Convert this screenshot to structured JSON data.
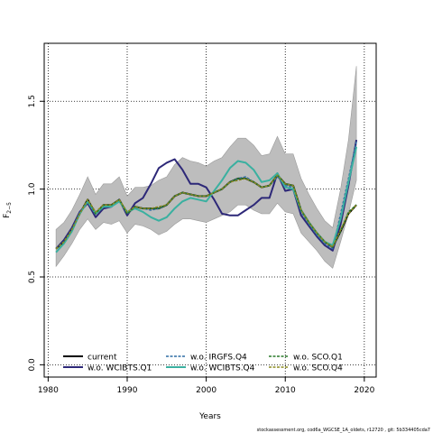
{
  "chart_data": {
    "type": "line",
    "xlabel": "Years",
    "ylabel_main": "F",
    "ylabel_sub": "2−5",
    "xlim": [
      1979.5,
      2021.5
    ],
    "ylim": [
      -0.07,
      1.83
    ],
    "xticks": [
      1980,
      1990,
      2000,
      2010,
      2020
    ],
    "yticks": [
      0.0,
      0.5,
      1.0,
      1.5
    ],
    "ytick_labels": [
      "0.0",
      "0.5",
      "1.0",
      "1.5"
    ],
    "grid": "dotted",
    "legend_position": "bottom-left",
    "footer": "stockassessment.org, cod6a_WGCSE_1A_oldets, r12720 , git: 5b334405cda7",
    "x": [
      1981,
      1982,
      1983,
      1984,
      1985,
      1986,
      1987,
      1988,
      1989,
      1990,
      1991,
      1992,
      1993,
      1994,
      1995,
      1996,
      1997,
      1998,
      1999,
      2000,
      2001,
      2002,
      2003,
      2004,
      2005,
      2006,
      2007,
      2008,
      2009,
      2010,
      2011,
      2012,
      2013,
      2014,
      2015,
      2016,
      2017,
      2018,
      2019
    ],
    "band": {
      "upper": [
        0.77,
        0.81,
        0.88,
        0.97,
        1.07,
        0.97,
        1.03,
        1.03,
        1.07,
        0.96,
        1.01,
        1.01,
        1.02,
        1.05,
        1.07,
        1.14,
        1.18,
        1.16,
        1.15,
        1.13,
        1.16,
        1.18,
        1.24,
        1.29,
        1.29,
        1.25,
        1.19,
        1.2,
        1.3,
        1.2,
        1.2,
        1.06,
        0.97,
        0.89,
        0.82,
        0.78,
        1.0,
        1.28,
        1.7
      ],
      "lower": [
        0.56,
        0.62,
        0.69,
        0.77,
        0.83,
        0.77,
        0.81,
        0.8,
        0.82,
        0.75,
        0.8,
        0.79,
        0.77,
        0.74,
        0.76,
        0.8,
        0.83,
        0.83,
        0.82,
        0.81,
        0.83,
        0.85,
        0.87,
        0.91,
        0.91,
        0.88,
        0.86,
        0.86,
        0.92,
        0.87,
        0.86,
        0.75,
        0.7,
        0.65,
        0.59,
        0.55,
        0.7,
        0.86,
        1.05
      ]
    },
    "series": [
      {
        "name": "current",
        "color": "#000000",
        "dash": "solid",
        "width": 2.0,
        "values": [
          0.66,
          0.7,
          0.77,
          0.86,
          0.94,
          0.86,
          0.91,
          0.91,
          0.94,
          0.86,
          0.9,
          0.89,
          0.89,
          0.89,
          0.91,
          0.96,
          0.98,
          0.97,
          0.96,
          0.96,
          0.98,
          1.0,
          1.04,
          1.06,
          1.06,
          1.04,
          1.01,
          1.02,
          1.08,
          1.03,
          1.02,
          0.88,
          0.81,
          0.75,
          0.7,
          0.67,
          0.76,
          0.86,
          0.91
        ]
      },
      {
        "name": "w.o. WCIBTS.Q1",
        "color": "#2d2878",
        "dash": "solid",
        "width": 2.0,
        "values": [
          0.66,
          0.71,
          0.78,
          0.87,
          0.92,
          0.84,
          0.89,
          0.9,
          0.94,
          0.85,
          0.92,
          0.95,
          1.03,
          1.12,
          1.15,
          1.17,
          1.11,
          1.03,
          1.03,
          1.01,
          0.94,
          0.86,
          0.85,
          0.85,
          0.88,
          0.91,
          0.95,
          0.95,
          1.09,
          0.99,
          1.0,
          0.85,
          0.79,
          0.73,
          0.68,
          0.65,
          0.8,
          1.02,
          1.28
        ]
      },
      {
        "name": "w.o. IRGFS.Q4",
        "color": "#2f6da4",
        "dash": "dashed",
        "width": 1.5,
        "values": [
          0.66,
          0.7,
          0.77,
          0.86,
          0.93,
          0.86,
          0.91,
          0.91,
          0.94,
          0.86,
          0.9,
          0.89,
          0.88,
          0.89,
          0.91,
          0.96,
          0.98,
          0.97,
          0.96,
          0.96,
          0.98,
          1.0,
          1.04,
          1.06,
          1.07,
          1.04,
          1.01,
          1.02,
          1.07,
          1.02,
          1.01,
          0.87,
          0.8,
          0.74,
          0.69,
          0.66,
          0.86,
          1.06,
          1.27
        ]
      },
      {
        "name": "w.o. WCIBTS.Q4",
        "color": "#3ab0a0",
        "dash": "solid",
        "width": 2.0,
        "values": [
          0.64,
          0.69,
          0.76,
          0.86,
          0.93,
          0.86,
          0.9,
          0.9,
          0.93,
          0.87,
          0.89,
          0.87,
          0.84,
          0.82,
          0.84,
          0.89,
          0.93,
          0.95,
          0.94,
          0.93,
          0.99,
          1.05,
          1.12,
          1.16,
          1.15,
          1.11,
          1.04,
          1.05,
          1.09,
          1.01,
          1.0,
          0.88,
          0.81,
          0.75,
          0.7,
          0.68,
          0.83,
          1.04,
          1.24
        ]
      },
      {
        "name": "w.o. SCO.Q1",
        "color": "#2a7a2a",
        "dash": "dashed",
        "width": 1.5,
        "values": [
          0.66,
          0.7,
          0.77,
          0.86,
          0.94,
          0.86,
          0.91,
          0.91,
          0.94,
          0.86,
          0.9,
          0.89,
          0.89,
          0.89,
          0.91,
          0.96,
          0.98,
          0.97,
          0.96,
          0.96,
          0.98,
          1.0,
          1.04,
          1.06,
          1.06,
          1.04,
          1.01,
          1.02,
          1.08,
          1.03,
          1.02,
          0.88,
          0.81,
          0.75,
          0.7,
          0.67,
          0.76,
          0.87,
          0.91
        ]
      },
      {
        "name": "w.o. SCO.Q4",
        "color": "#8a8a20",
        "dash": "dashed",
        "width": 1.5,
        "values": [
          0.66,
          0.7,
          0.77,
          0.86,
          0.94,
          0.87,
          0.91,
          0.91,
          0.94,
          0.87,
          0.9,
          0.89,
          0.89,
          0.9,
          0.91,
          0.96,
          0.98,
          0.97,
          0.96,
          0.96,
          0.98,
          1.0,
          1.04,
          1.05,
          1.06,
          1.04,
          1.01,
          1.02,
          1.08,
          1.03,
          1.02,
          0.88,
          0.81,
          0.75,
          0.7,
          0.67,
          0.77,
          0.86,
          0.91
        ]
      }
    ]
  }
}
